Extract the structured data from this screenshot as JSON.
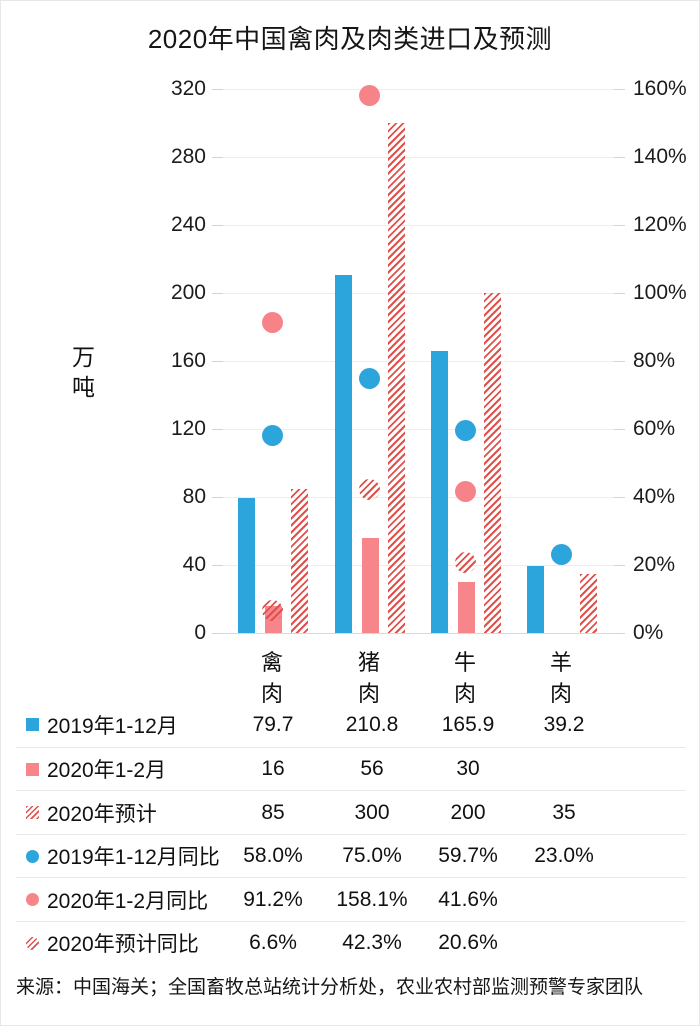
{
  "title": "2020年中国禽肉及肉类进口及预测",
  "source": "来源：中国海关；全国畜牧总站统计分析处，农业农村部监测预警专家团队",
  "colors": {
    "blue": "#2CA5DD",
    "pink": "#F7868B",
    "hatch_red": "#E1514B",
    "grid": "#EDEDED",
    "text": "#111111"
  },
  "chart_data": {
    "type": "bar",
    "title": "2020年中国禽肉及肉类进口及预测",
    "ylabel": "万吨",
    "categories": [
      "禽肉",
      "猪肉",
      "牛肉",
      "羊肉"
    ],
    "left_axis": {
      "ticks": [
        "320",
        "280",
        "240",
        "200",
        "160",
        "120",
        "80",
        "40",
        "0"
      ],
      "ylim": [
        0,
        320
      ]
    },
    "right_axis": {
      "ticks": [
        "160%",
        "140%",
        "120%",
        "100%",
        "80%",
        "60%",
        "40%",
        "20%",
        "0%"
      ],
      "ylim_percent": [
        0,
        160
      ]
    },
    "grid": true,
    "legend_position": "table-below",
    "series": [
      {
        "key": "bar-2019",
        "name": "2019年1-12月",
        "kind": "bar",
        "axis": "left",
        "style": "blue",
        "values": [
          79.7,
          210.8,
          165.9,
          39.2
        ]
      },
      {
        "key": "bar-2020-janfeb",
        "name": "2020年1-2月",
        "kind": "bar",
        "axis": "left",
        "style": "pink",
        "values": [
          16,
          56,
          30,
          null
        ]
      },
      {
        "key": "bar-2020-forecast",
        "name": "2020年预计",
        "kind": "bar",
        "axis": "left",
        "style": "hatch",
        "values": [
          85,
          300,
          200,
          35
        ]
      },
      {
        "key": "dot-2019-yoy",
        "name": "2019年1-12月同比",
        "kind": "dot",
        "axis": "right",
        "style": "blue",
        "values": [
          58.0,
          75.0,
          59.7,
          23.0
        ]
      },
      {
        "key": "dot-2020-janfeb-yoy",
        "name": "2020年1-2月同比",
        "kind": "dot",
        "axis": "right",
        "style": "pink",
        "values": [
          91.2,
          158.1,
          41.6,
          null
        ]
      },
      {
        "key": "dot-2020-forecast-yoy",
        "name": "2020年预计同比",
        "kind": "dot",
        "axis": "right",
        "style": "hatch",
        "values": [
          6.6,
          42.3,
          20.6,
          null
        ]
      }
    ]
  },
  "table": {
    "rows": [
      {
        "label": "2019年1-12月",
        "marker_shape": "square",
        "marker_style": "blue",
        "values": [
          "79.7",
          "210.8",
          "165.9",
          "39.2"
        ]
      },
      {
        "label": "2020年1-2月",
        "marker_shape": "square",
        "marker_style": "pink",
        "values": [
          "16",
          "56",
          "30",
          ""
        ]
      },
      {
        "label": "2020年预计",
        "marker_shape": "square",
        "marker_style": "hatch",
        "values": [
          "85",
          "300",
          "200",
          "35"
        ]
      },
      {
        "label": "2019年1-12月同比",
        "marker_shape": "circle",
        "marker_style": "blue",
        "values": [
          "58.0%",
          "75.0%",
          "59.7%",
          "23.0%"
        ]
      },
      {
        "label": "2020年1-2月同比",
        "marker_shape": "circle",
        "marker_style": "pink",
        "values": [
          "91.2%",
          "158.1%",
          "41.6%",
          ""
        ]
      },
      {
        "label": "2020年预计同比",
        "marker_shape": "circle",
        "marker_style": "hatch",
        "values": [
          "6.6%",
          "42.3%",
          "20.6%",
          ""
        ]
      }
    ]
  }
}
